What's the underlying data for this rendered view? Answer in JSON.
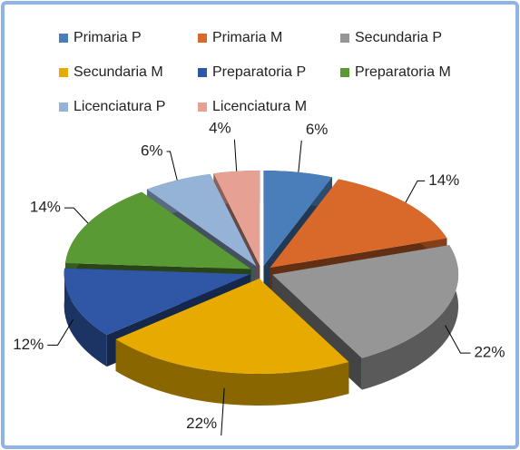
{
  "chart_data": {
    "type": "pie",
    "categories": [
      "Primaria P",
      "Primaria M",
      "Secundaria P",
      "Secundaria M",
      "Preparatoria P",
      "Preparatoria M",
      "Licenciatura P",
      "Licenciatura M"
    ],
    "values": [
      6,
      14,
      22,
      22,
      12,
      14,
      6,
      4
    ],
    "value_labels": [
      "6%",
      "14%",
      "22%",
      "22%",
      "12%",
      "14%",
      "6%",
      "4%"
    ],
    "colors": [
      "#4a7ebb",
      "#d9692a",
      "#969696",
      "#e6aa00",
      "#2f57a6",
      "#5a9a35",
      "#95b3d7",
      "#e6a194"
    ],
    "legend": "top"
  }
}
